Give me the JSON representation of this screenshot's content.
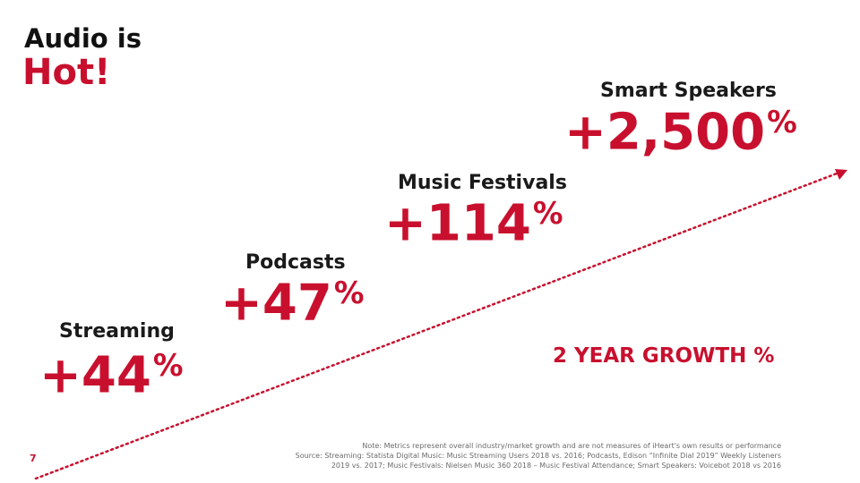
{
  "title": {
    "line1": "Audio is",
    "line2": "Hot!"
  },
  "metrics": [
    {
      "label": "Streaming",
      "value": "+44",
      "unit": "%"
    },
    {
      "label": "Podcasts",
      "value": "+47",
      "unit": "%"
    },
    {
      "label": "Music Festivals",
      "value": "+114",
      "unit": "%"
    },
    {
      "label": "Smart Speakers",
      "value": "+2,500",
      "unit": "%"
    }
  ],
  "growth_label": "2 YEAR GROWTH %",
  "footnote": {
    "note": "Note: Metrics represent overall industry/market growth and are not measures of iHeart's own results or performance",
    "source": "Source: Streaming: Statista Digital Music: Music Streaming Users 2018 vs. 2016; Podcasts, Edison “Infinite Dial 2019” Weekly Listeners 2019 vs. 2017; Music Festivals: Nielsen Music 360 2018 – Music Festival Attendance; Smart Speakers: Voicebot 2018 vs 2016"
  },
  "page_number": "7",
  "colors": {
    "accent": "#c8102e",
    "text": "#1a1a1a",
    "muted": "#6b6b6b"
  }
}
